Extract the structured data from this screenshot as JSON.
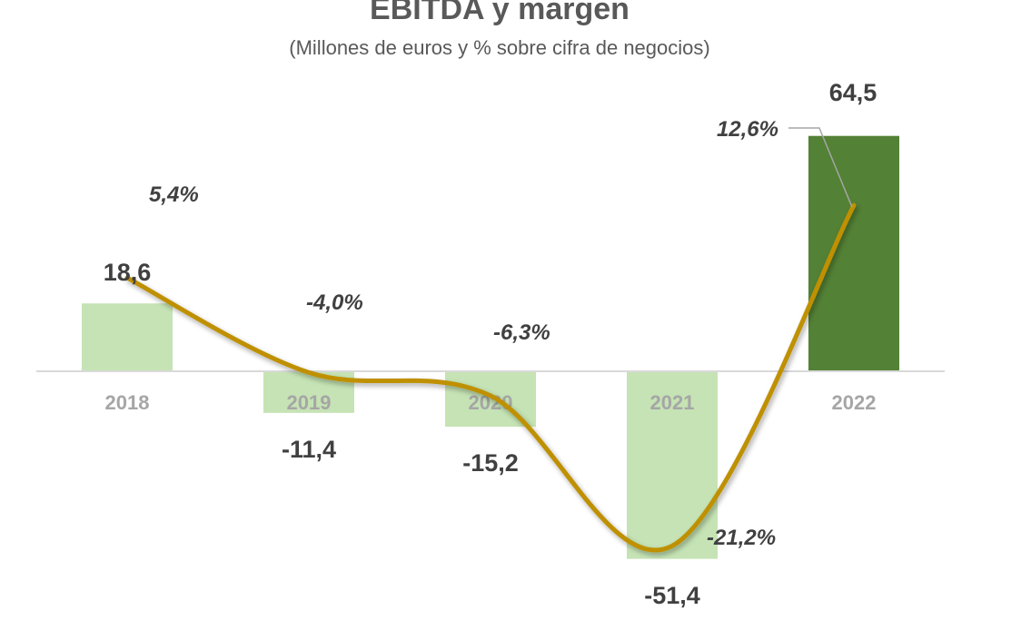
{
  "title": "EBITDA y margen",
  "subtitle": "(Millones de euros y % sobre cifra de negocios)",
  "colors": {
    "bar_light": "#c5e3b4",
    "bar_highlight": "#538135",
    "line": "#bf9000",
    "axis": "#d9d9d9",
    "label_text": "#404040",
    "tick_text": "#a6a6a6"
  },
  "chart_data": {
    "type": "bar",
    "categories": [
      "2018",
      "2019",
      "2020",
      "2021",
      "2022"
    ],
    "series": [
      {
        "type": "bar",
        "values": [
          18.6,
          -11.4,
          -15.2,
          -51.4,
          64.5
        ],
        "labels": [
          "18,6",
          "-11,4",
          "-15,2",
          "-51,4",
          "64,5"
        ]
      },
      {
        "type": "line",
        "values": [
          5.4,
          -4.0,
          -6.3,
          -21.2,
          12.6
        ],
        "labels": [
          "5,4%",
          "-4,0%",
          "-6,3%",
          "-21,2%",
          "12,6%"
        ]
      }
    ],
    "highlight_category": "2022",
    "legend": "none",
    "grid": false
  }
}
